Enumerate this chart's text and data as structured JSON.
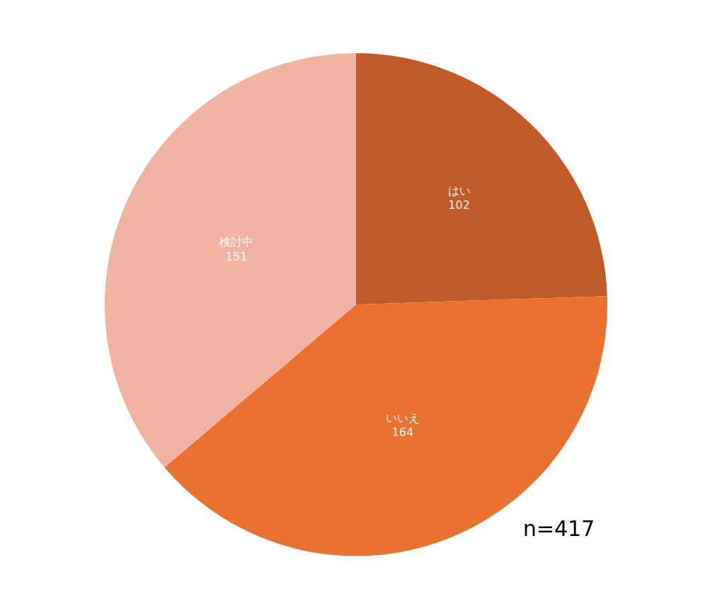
{
  "chart_data": {
    "type": "pie",
    "categories": [
      "はい",
      "いいえ",
      "検討中"
    ],
    "values": [
      102,
      164,
      151
    ],
    "colors": [
      "#c05a28",
      "#e97230",
      "#f0b3a2"
    ],
    "data_labels": true,
    "legend": false,
    "annotations": [
      "n=417"
    ]
  }
}
